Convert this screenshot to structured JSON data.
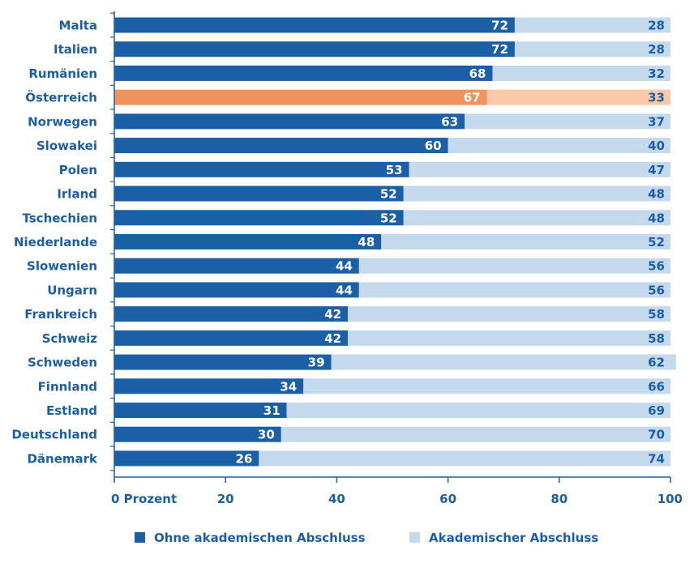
{
  "chart_data": {
    "type": "bar",
    "orientation": "horizontal",
    "stacked": true,
    "categories": [
      "Malta",
      "Italien",
      "Rumänien",
      "Österreich",
      "Norwegen",
      "Slowakei",
      "Polen",
      "Irland",
      "Tschechien",
      "Niederlande",
      "Slowenien",
      "Ungarn",
      "Frankreich",
      "Schweiz",
      "Schweden",
      "Finnland",
      "Estland",
      "Deutschland",
      "Dänemark"
    ],
    "series": [
      {
        "name": "Ohne akademischen Abschluss",
        "values": [
          72,
          72,
          68,
          67,
          63,
          60,
          53,
          52,
          52,
          48,
          44,
          44,
          42,
          42,
          39,
          34,
          31,
          30,
          26
        ],
        "color": "#1b5fa6"
      },
      {
        "name": "Akademischer Abschluss",
        "values": [
          28,
          28,
          32,
          33,
          37,
          40,
          47,
          48,
          48,
          52,
          56,
          56,
          58,
          58,
          62,
          66,
          69,
          70,
          74
        ],
        "color": "#c5d9ec"
      }
    ],
    "highlight": {
      "category": "Österreich",
      "colors": [
        "#f0935e",
        "#fbc9aa"
      ]
    },
    "xlim": [
      0,
      100
    ],
    "xticks": [
      0,
      20,
      40,
      60,
      80,
      100
    ],
    "xtick_labels": [
      "0 Prozent",
      "20",
      "40",
      "60",
      "80",
      "100"
    ],
    "grid": false,
    "legend_position": "bottom"
  }
}
